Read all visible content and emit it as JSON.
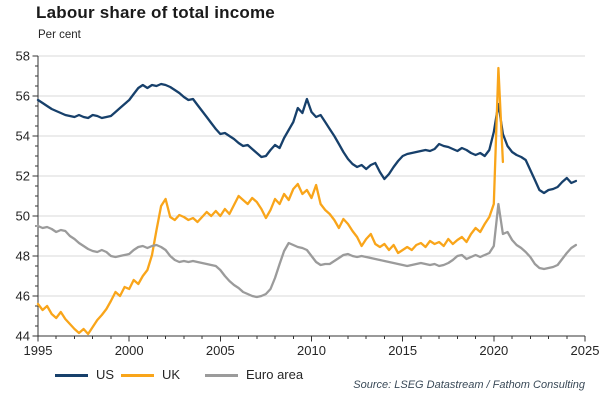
{
  "header": {
    "title": "Labour share of total income",
    "unit_label": "Per cent"
  },
  "source": {
    "text": "Source: LSEG Datastream / Fathom Consulting"
  },
  "legend": [
    {
      "label": "US",
      "color": "#17406b"
    },
    {
      "label": "UK",
      "color": "#f9a51a"
    },
    {
      "label": "Euro area",
      "color": "#9b9b9b"
    }
  ],
  "colors": {
    "us_line": "#17406b",
    "uk_line": "#f9a51a",
    "euro_line": "#9b9b9b",
    "gridline": "#d9d9d9",
    "axis": "#333333",
    "tick_label": "#262626"
  },
  "chart_data": {
    "type": "line",
    "title": "Labour share of total income",
    "ylabel": "Per cent",
    "ylim": [
      44,
      58
    ],
    "ytick_step": 2,
    "yminor_step": 0.5,
    "xlim": [
      1995,
      2025
    ],
    "xticks": [
      1995,
      2000,
      2005,
      2010,
      2015,
      2020,
      2025
    ],
    "xminor_step": 1,
    "grid": "horizontal gridlines at 46,48,50,52,54,56,58",
    "legend_position": "bottom-left",
    "period": "quarterly",
    "series": [
      {
        "name": "US",
        "color": "#17406b",
        "start_year": 1995,
        "values": [
          55.8,
          55.65,
          55.5,
          55.35,
          55.25,
          55.15,
          55.05,
          55.0,
          54.95,
          55.05,
          54.95,
          54.9,
          55.05,
          55.0,
          54.9,
          54.95,
          55.0,
          55.2,
          55.4,
          55.6,
          55.8,
          56.1,
          56.4,
          56.55,
          56.4,
          56.55,
          56.5,
          56.6,
          56.55,
          56.45,
          56.3,
          56.15,
          55.95,
          55.8,
          55.85,
          55.55,
          55.25,
          54.95,
          54.65,
          54.35,
          54.1,
          54.15,
          54.0,
          53.85,
          53.65,
          53.5,
          53.55,
          53.35,
          53.15,
          52.95,
          53.0,
          53.3,
          53.55,
          53.4,
          53.9,
          54.3,
          54.7,
          55.4,
          55.15,
          55.85,
          55.2,
          54.95,
          55.05,
          54.7,
          54.35,
          54.0,
          53.6,
          53.2,
          52.85,
          52.6,
          52.45,
          52.55,
          52.35,
          52.55,
          52.65,
          52.2,
          51.85,
          52.1,
          52.45,
          52.75,
          53.0,
          53.1,
          53.15,
          53.2,
          53.25,
          53.3,
          53.25,
          53.35,
          53.6,
          53.5,
          53.45,
          53.35,
          53.25,
          53.4,
          53.3,
          53.15,
          53.05,
          53.15,
          53.0,
          53.3,
          54.2,
          55.6,
          54.1,
          53.5,
          53.2,
          53.05,
          52.95,
          52.8,
          52.3,
          51.8,
          51.3,
          51.15,
          51.3,
          51.35,
          51.45,
          51.7,
          51.9,
          51.65,
          51.75
        ]
      },
      {
        "name": "UK",
        "color": "#f9a51a",
        "start_year": 1995,
        "values": [
          45.6,
          45.3,
          45.5,
          45.1,
          44.9,
          45.2,
          44.85,
          44.6,
          44.35,
          44.15,
          44.35,
          44.1,
          44.45,
          44.8,
          45.05,
          45.35,
          45.75,
          46.2,
          46.0,
          46.45,
          46.35,
          46.8,
          46.6,
          47.0,
          47.3,
          48.05,
          49.3,
          50.5,
          50.85,
          49.95,
          49.8,
          50.05,
          49.95,
          49.8,
          49.9,
          49.7,
          49.95,
          50.2,
          50.0,
          50.25,
          50.0,
          50.35,
          50.1,
          50.55,
          51.0,
          50.8,
          50.6,
          50.9,
          50.7,
          50.35,
          49.9,
          50.3,
          50.85,
          50.6,
          51.1,
          50.8,
          51.35,
          51.6,
          51.1,
          51.3,
          50.9,
          51.55,
          50.6,
          50.3,
          50.1,
          49.8,
          49.4,
          49.85,
          49.6,
          49.25,
          48.95,
          48.5,
          48.85,
          49.1,
          48.6,
          48.45,
          48.6,
          48.3,
          48.55,
          48.15,
          48.3,
          48.45,
          48.3,
          48.55,
          48.65,
          48.45,
          48.75,
          48.6,
          48.7,
          48.5,
          48.85,
          48.6,
          48.8,
          48.95,
          48.7,
          49.1,
          49.4,
          49.2,
          49.6,
          49.95,
          50.6,
          57.4,
          52.7
        ]
      },
      {
        "name": "Euro area",
        "color": "#9b9b9b",
        "start_year": 1995,
        "values": [
          49.5,
          49.4,
          49.45,
          49.35,
          49.2,
          49.3,
          49.25,
          49.0,
          48.85,
          48.65,
          48.5,
          48.35,
          48.25,
          48.2,
          48.3,
          48.2,
          48.0,
          47.95,
          48.0,
          48.05,
          48.1,
          48.3,
          48.45,
          48.5,
          48.4,
          48.5,
          48.55,
          48.45,
          48.3,
          48.0,
          47.8,
          47.7,
          47.75,
          47.7,
          47.75,
          47.7,
          47.65,
          47.6,
          47.55,
          47.5,
          47.3,
          47.0,
          46.75,
          46.55,
          46.4,
          46.2,
          46.1,
          46.0,
          45.95,
          46.0,
          46.1,
          46.35,
          46.9,
          47.6,
          48.25,
          48.65,
          48.55,
          48.45,
          48.4,
          48.3,
          48.0,
          47.7,
          47.55,
          47.6,
          47.6,
          47.75,
          47.9,
          48.05,
          48.1,
          48.0,
          47.95,
          48.0,
          47.95,
          47.9,
          47.85,
          47.8,
          47.75,
          47.7,
          47.65,
          47.6,
          47.55,
          47.5,
          47.55,
          47.6,
          47.65,
          47.6,
          47.55,
          47.6,
          47.5,
          47.55,
          47.65,
          47.8,
          48.0,
          48.05,
          47.85,
          47.95,
          48.05,
          47.95,
          48.05,
          48.15,
          48.5,
          50.6,
          49.1,
          49.2,
          48.8,
          48.55,
          48.4,
          48.2,
          47.95,
          47.6,
          47.4,
          47.35,
          47.4,
          47.45,
          47.55,
          47.85,
          48.15,
          48.4,
          48.55
        ]
      }
    ]
  }
}
